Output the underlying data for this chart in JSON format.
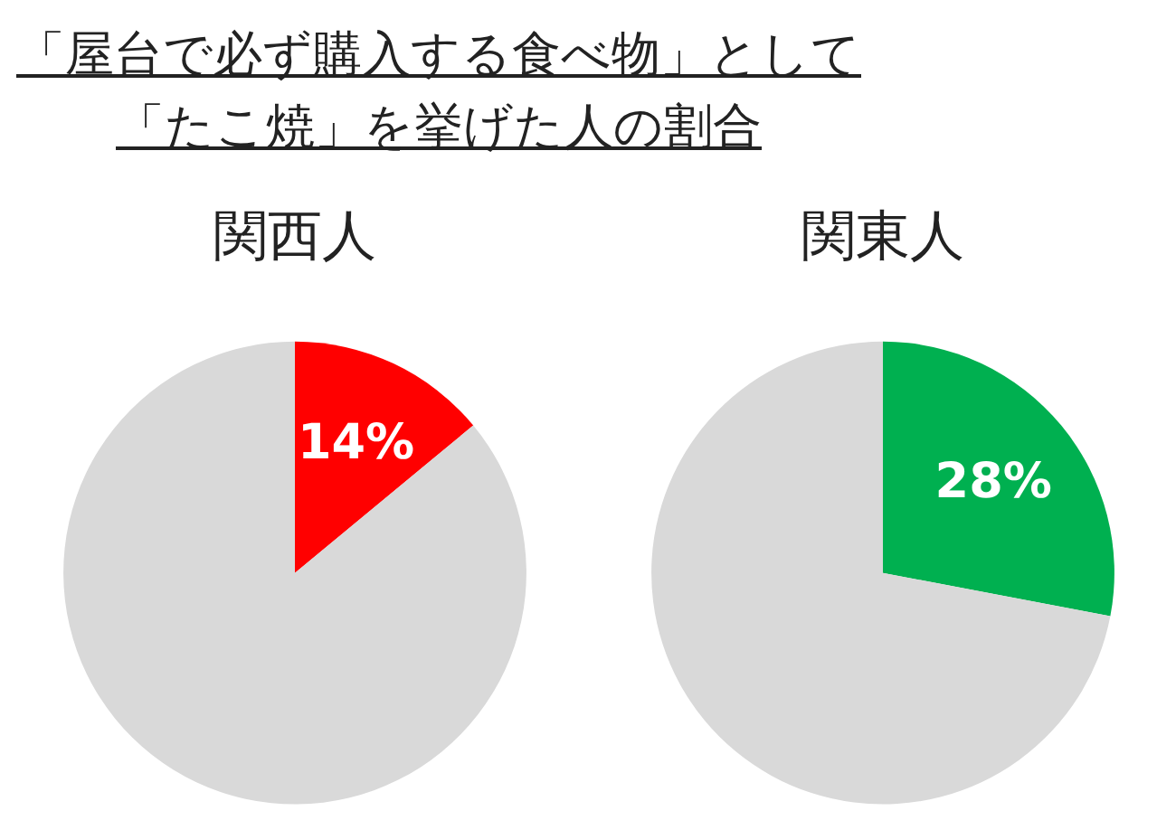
{
  "chart_data": [
    {
      "type": "pie",
      "title": "「屋台で必ず購入する食べ物」として「たこ焼」を挙げた人の割合",
      "subtitle": "関西人",
      "categories": [
        null,
        null
      ],
      "values": [
        14,
        86
      ],
      "colors": [
        "#ff0000",
        "#d9d9d9"
      ],
      "value_labels": [
        "14%",
        null
      ]
    },
    {
      "type": "pie",
      "subtitle": "関東人",
      "categories": [
        null,
        null
      ],
      "values": [
        28,
        72
      ],
      "colors": [
        "#00b050",
        "#d9d9d9"
      ],
      "value_labels": [
        "28%",
        null
      ]
    }
  ]
}
